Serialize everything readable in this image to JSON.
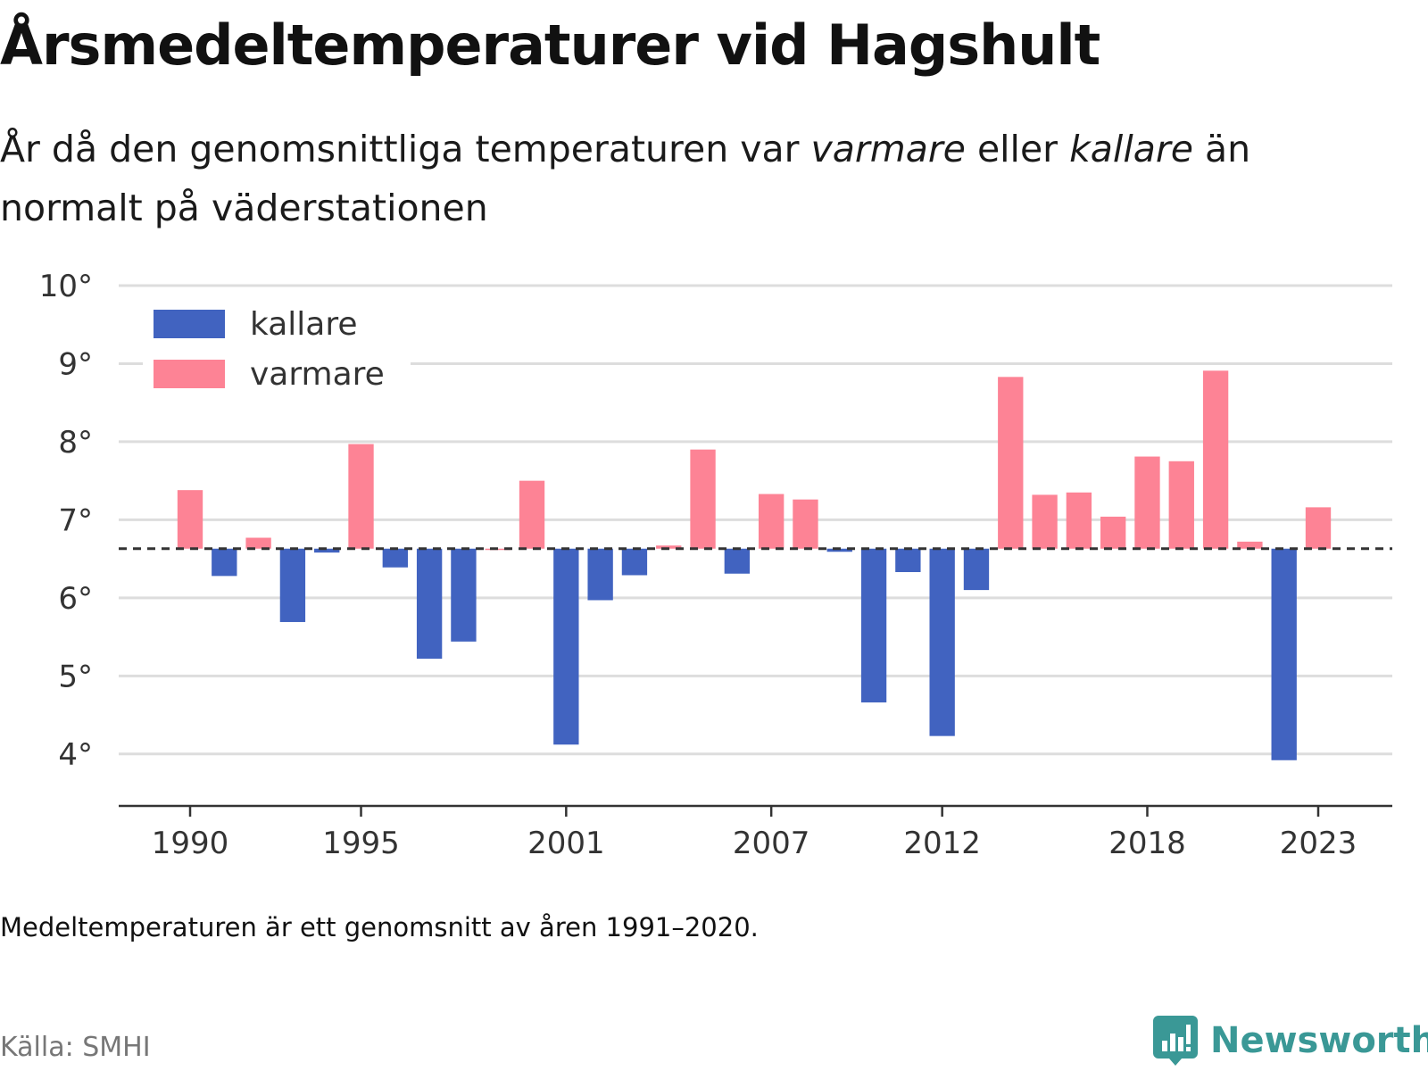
{
  "title": "Årsmedeltemperaturer vid Hagshult",
  "subtitle": {
    "part1": "År då den genomsnittliga temperaturen var ",
    "em1": "varmare",
    "part2": " eller ",
    "em2": "kallare",
    "part3": " än normalt på väderstationen"
  },
  "note": "Medeltemperaturen är ett genomsnitt av åren 1991–2020.",
  "source": "Källa: SMHI",
  "brand": {
    "name": "Newsworthy",
    "icon": "newsworthy-logo-icon",
    "color": "#3a9896"
  },
  "colors": {
    "kallare": "#4163c0",
    "varmare": "#fd8395"
  },
  "chart_data": {
    "type": "bar",
    "baseline": 6.63,
    "ylim": [
      3.3,
      10
    ],
    "yticks": [
      4,
      5,
      6,
      7,
      8,
      9,
      10
    ],
    "ytick_labels": [
      "4°",
      "5°",
      "6°",
      "7°",
      "8°",
      "9°",
      "10°"
    ],
    "xticks": [
      1990,
      1995,
      2001,
      2007,
      2012,
      2018,
      2023
    ],
    "xtick_labels": [
      "1990",
      "1995",
      "2001",
      "2007",
      "2012",
      "2018",
      "2023"
    ],
    "legend": {
      "position": "top-left",
      "entries": [
        "kallare",
        "varmare"
      ]
    },
    "years": [
      1990,
      1991,
      1992,
      1993,
      1994,
      1995,
      1996,
      1997,
      1998,
      1999,
      2000,
      2001,
      2002,
      2003,
      2004,
      2005,
      2006,
      2007,
      2008,
      2009,
      2010,
      2011,
      2012,
      2013,
      2014,
      2015,
      2016,
      2017,
      2018,
      2019,
      2020,
      2021,
      2022,
      2023
    ],
    "values": [
      7.38,
      6.28,
      6.77,
      5.69,
      6.58,
      7.97,
      6.39,
      5.22,
      5.44,
      6.63,
      7.5,
      4.12,
      5.97,
      6.29,
      6.67,
      7.9,
      6.31,
      7.33,
      7.26,
      6.59,
      4.66,
      6.33,
      4.23,
      6.1,
      8.83,
      7.32,
      7.35,
      7.04,
      7.81,
      7.75,
      8.91,
      6.72,
      3.92,
      7.16
    ]
  }
}
